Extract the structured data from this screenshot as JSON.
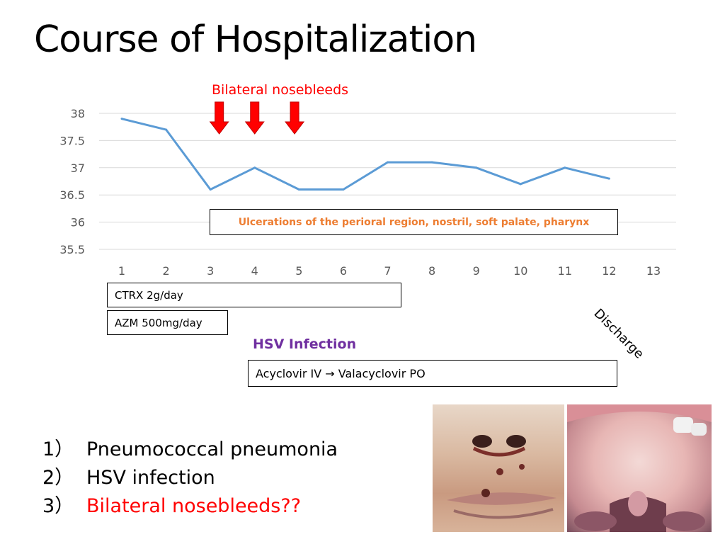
{
  "slide": {
    "title": "Course of Hospitalization"
  },
  "chart_data": {
    "type": "line",
    "x": [
      1,
      2,
      3,
      4,
      5,
      6,
      7,
      8,
      9,
      10,
      11,
      12
    ],
    "categories": [
      "1",
      "2",
      "3",
      "4",
      "5",
      "6",
      "7",
      "8",
      "9",
      "10",
      "11",
      "12",
      "13"
    ],
    "series": [
      {
        "values": [
          37.9,
          37.7,
          36.6,
          37.0,
          36.6,
          36.6,
          37.1,
          37.1,
          37.0,
          36.7,
          37.0,
          36.8
        ]
      }
    ],
    "yticks": [
      "38",
      "37.5",
      "37",
      "36.5",
      "36",
      "35.5"
    ],
    "ylim": [
      35.5,
      38
    ],
    "xlim": [
      1,
      13
    ],
    "grid": true,
    "line_color": "#5b9bd5"
  },
  "nosebleeds": {
    "label": "Bilateral nosebleeds",
    "days": [
      3.2,
      4.0,
      4.9
    ],
    "color": "#ff0000"
  },
  "annotations": {
    "ulcerations": "Ulcerations of the perioral region, nostril, soft palate, pharynx",
    "hsv_infection": "HSV Infection",
    "discharge": "Discharge"
  },
  "treatments": {
    "ctrx": "CTRX 2g/day",
    "azm": "AZM 500mg/day",
    "acyclovir": "Acyclovir IV → Valacyclovir PO"
  },
  "diagnoses": [
    {
      "num": "1）",
      "text": "Pneumococcal pneumonia",
      "color": "#000000"
    },
    {
      "num": "2）",
      "text": "HSV infection",
      "color": "#000000"
    },
    {
      "num": "3）",
      "text": "Bilateral nosebleeds??",
      "color": "#ff0000"
    }
  ]
}
